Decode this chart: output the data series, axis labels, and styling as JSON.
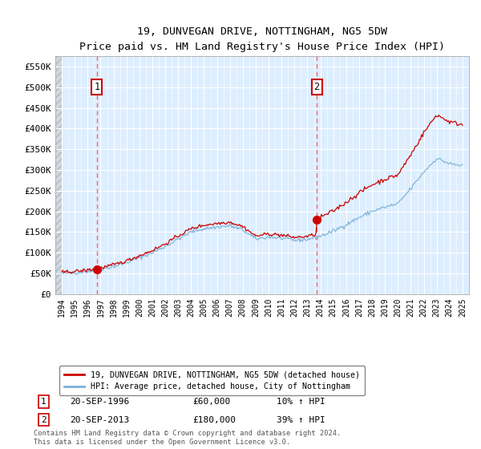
{
  "title": "19, DUNVEGAN DRIVE, NOTTINGHAM, NG5 5DW",
  "subtitle": "Price paid vs. HM Land Registry's House Price Index (HPI)",
  "legend_line1": "19, DUNVEGAN DRIVE, NOTTINGHAM, NG5 5DW (detached house)",
  "legend_line2": "HPI: Average price, detached house, City of Nottingham",
  "footnote": "Contains HM Land Registry data © Crown copyright and database right 2024.\nThis data is licensed under the Open Government Licence v3.0.",
  "sale1_date": "20-SEP-1996",
  "sale1_price": "£60,000",
  "sale1_hpi": "10% ↑ HPI",
  "sale1_year": 1996.72,
  "sale1_value": 60000,
  "sale2_date": "20-SEP-2013",
  "sale2_price": "£180,000",
  "sale2_hpi": "39% ↑ HPI",
  "sale2_year": 2013.72,
  "sale2_value": 180000,
  "ylim": [
    0,
    575000
  ],
  "xlim": [
    1993.5,
    2025.5
  ],
  "yticks": [
    0,
    50000,
    100000,
    150000,
    200000,
    250000,
    300000,
    350000,
    400000,
    450000,
    500000,
    550000
  ],
  "ytick_labels": [
    "£0",
    "£50K",
    "£100K",
    "£150K",
    "£200K",
    "£250K",
    "£300K",
    "£350K",
    "£400K",
    "£450K",
    "£500K",
    "£550K"
  ],
  "red_color": "#cc0000",
  "blue_color": "#7bafd4",
  "bg_color": "#ddeeff",
  "grid_color": "#ffffff",
  "dashed_line_color": "#ff6666",
  "hatch_facecolor": "#d0d8e0",
  "hatch_edgecolor": "#b0b8c0"
}
